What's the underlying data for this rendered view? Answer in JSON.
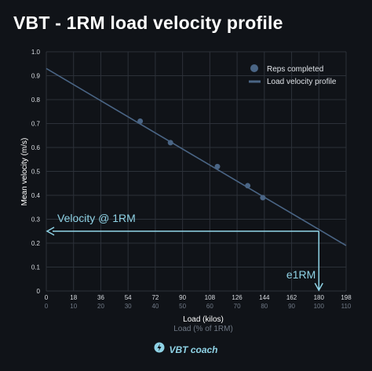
{
  "title": "VBT - 1RM load velocity profile",
  "brand": {
    "name": "VBT coach",
    "icon": "lightning-bolt-icon"
  },
  "colors": {
    "background": "#101318",
    "grid": "#2c3139",
    "series": "#4a6585",
    "annotation": "#8fd3e6",
    "text": "#ffffff",
    "secondary_text": "#6f7885"
  },
  "chart_data": {
    "type": "scatter",
    "title": "VBT - 1RM load velocity profile",
    "xlabel": "Load (kilos)",
    "xlabel2": "Load (% of 1RM)",
    "ylabel": "Mean velocity (m/s)",
    "xlim": [
      0,
      198
    ],
    "ylim": [
      0,
      1.0
    ],
    "xticks": [
      "0",
      "18",
      "36",
      "54",
      "72",
      "90",
      "108",
      "126",
      "144",
      "162",
      "180",
      "198"
    ],
    "xticks2": [
      "0",
      "10",
      "20",
      "30",
      "40",
      "50",
      "60",
      "70",
      "80",
      "90",
      "100",
      "110"
    ],
    "yticks": [
      "0",
      "0.1",
      "0.2",
      "0.3",
      "0.4",
      "0.5",
      "0.6",
      "0.7",
      "0.8",
      "0.9",
      "1.0"
    ],
    "grid": true,
    "legend_position": "top-right",
    "series": [
      {
        "name": "Reps completed",
        "kind": "scatter",
        "x": [
          62,
          82,
          113,
          133,
          143
        ],
        "y": [
          0.71,
          0.62,
          0.52,
          0.44,
          0.39
        ]
      },
      {
        "name": "Load velocity profile",
        "kind": "line",
        "x": [
          0,
          198
        ],
        "y": [
          0.93,
          0.19
        ]
      }
    ],
    "annotations": {
      "velocity_label": "Velocity @ 1RM",
      "velocity_at_1rm": 0.25,
      "e1rm_label": "e1RM",
      "e1rm": 180
    }
  }
}
